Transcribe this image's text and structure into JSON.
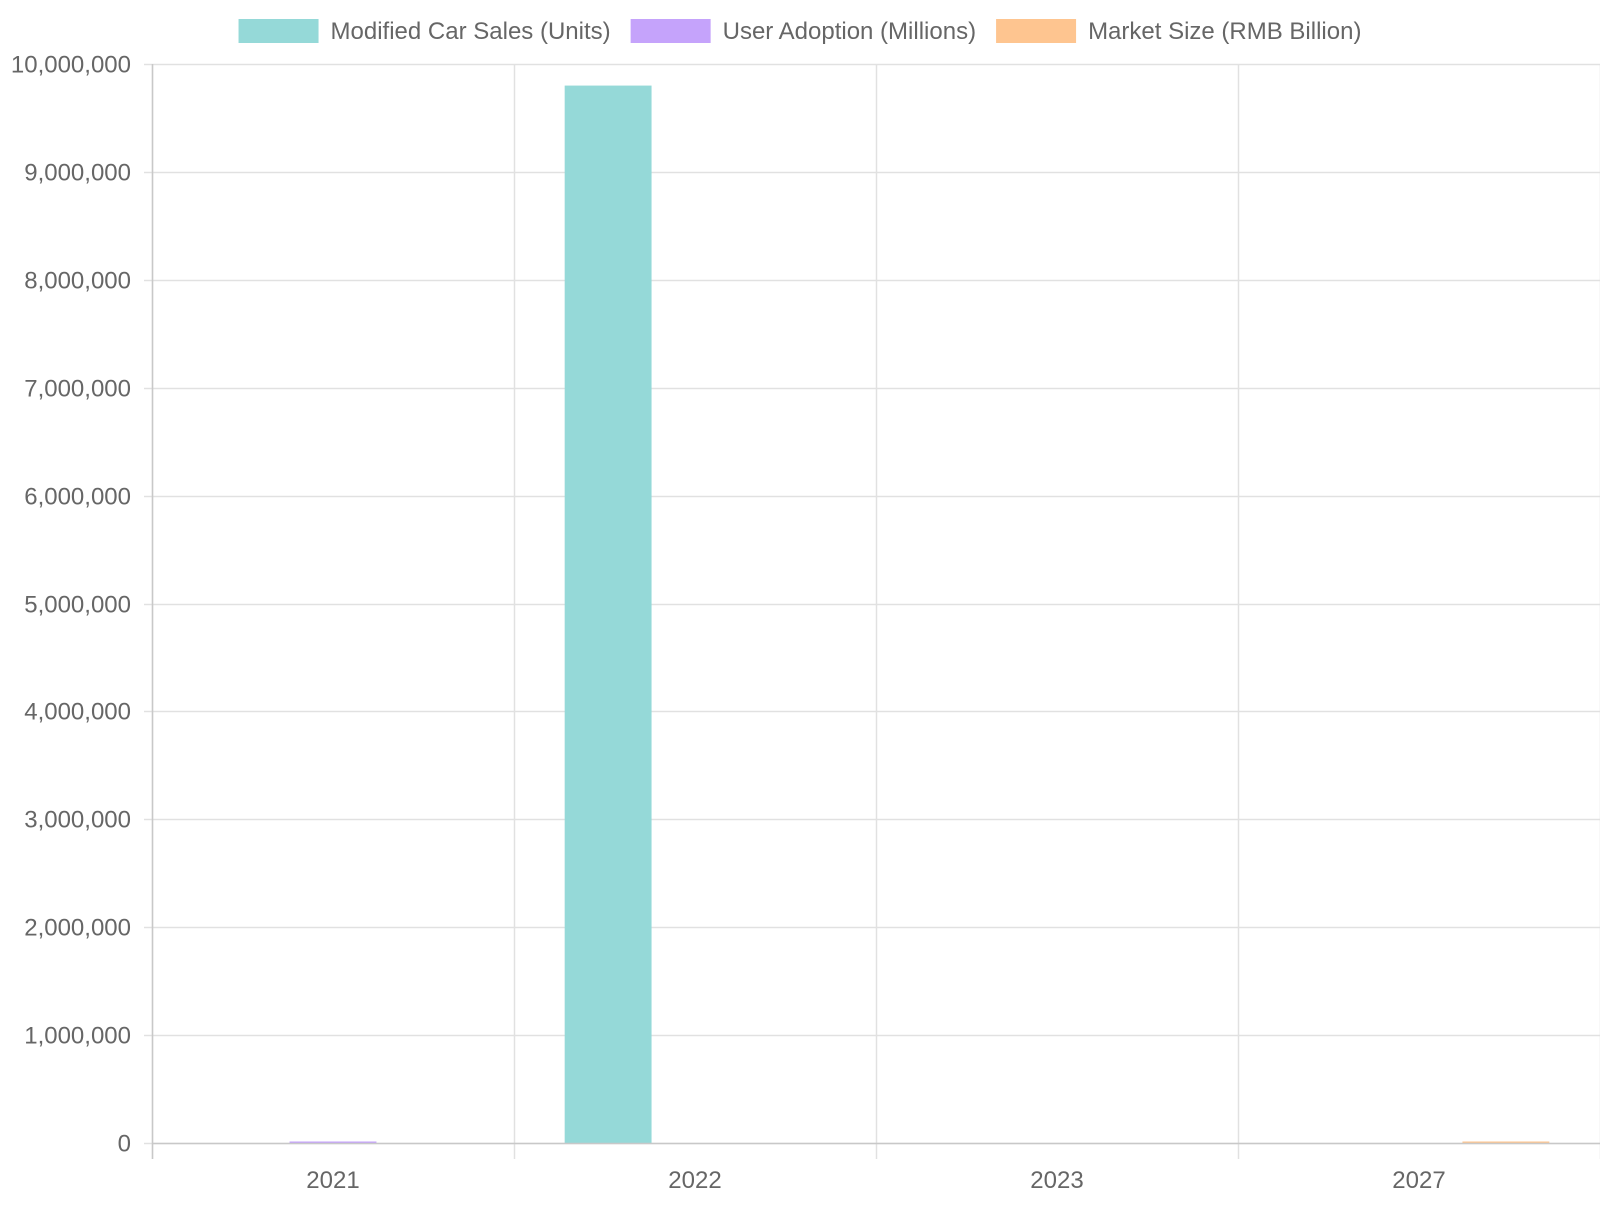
{
  "chart_data": {
    "type": "bar",
    "categories": [
      "2021",
      "2022",
      "2023",
      "2027"
    ],
    "series": [
      {
        "name": "Modified Car Sales (Units)",
        "values": [
          null,
          9800000,
          null,
          null
        ],
        "color": "#95d9d8"
      },
      {
        "name": "User Adoption (Millions)",
        "values": [
          12,
          null,
          null,
          null
        ],
        "color": "#c5a3fb"
      },
      {
        "name": "Market Size (RMB Billion)",
        "values": [
          null,
          null,
          null,
          20
        ],
        "color": "#fec590"
      }
    ],
    "title": "",
    "xlabel": "",
    "ylabel": "",
    "ylim": [
      0,
      10000000
    ],
    "y_ticks": [
      0,
      1000000,
      2000000,
      3000000,
      4000000,
      5000000,
      6000000,
      7000000,
      8000000,
      9000000,
      10000000
    ],
    "grid": true,
    "legend_position": "top"
  }
}
